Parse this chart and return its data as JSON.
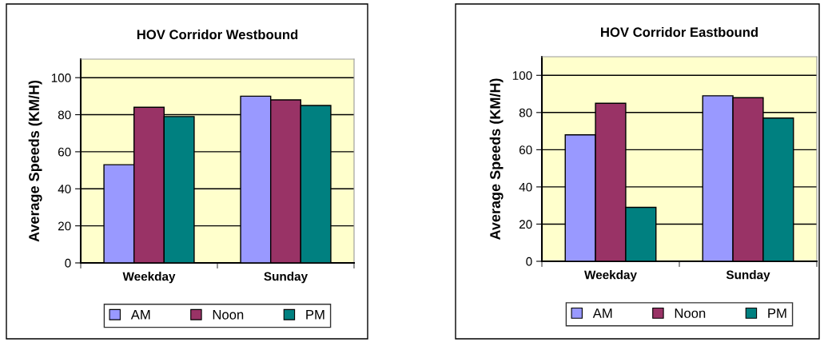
{
  "chart_data": [
    {
      "type": "bar",
      "title": "HOV Corridor Westbound",
      "ylabel": "Average Speeds (KM/H)",
      "categories": [
        "Weekday",
        "Sunday"
      ],
      "series": [
        {
          "name": "AM",
          "color": "#9999ff",
          "values": [
            53,
            90
          ]
        },
        {
          "name": "Noon",
          "color": "#993366",
          "values": [
            84,
            88
          ]
        },
        {
          "name": "PM",
          "color": "#008080",
          "values": [
            79,
            85
          ]
        }
      ],
      "ylim": [
        0,
        110
      ],
      "yticks": [
        0,
        20,
        40,
        60,
        80,
        100
      ],
      "grid": "y",
      "legend": "bottom"
    },
    {
      "type": "bar",
      "title": "HOV Corridor Eastbound",
      "ylabel": "Average Speeds (KM/H)",
      "categories": [
        "Weekday",
        "Sunday"
      ],
      "series": [
        {
          "name": "AM",
          "color": "#9999ff",
          "values": [
            68,
            89
          ]
        },
        {
          "name": "Noon",
          "color": "#993366",
          "values": [
            85,
            88
          ]
        },
        {
          "name": "PM",
          "color": "#008080",
          "values": [
            29,
            77
          ]
        }
      ],
      "ylim": [
        0,
        110
      ],
      "yticks": [
        0,
        20,
        40,
        60,
        80,
        100
      ],
      "grid": "y",
      "legend": "bottom"
    }
  ]
}
